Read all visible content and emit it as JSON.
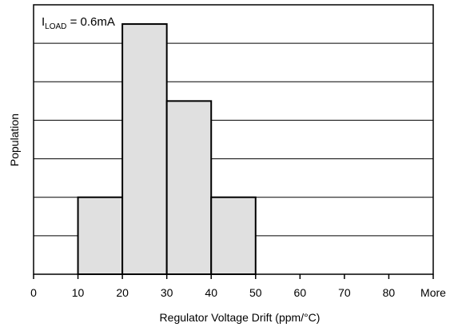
{
  "chart_data": {
    "type": "bar",
    "subtype": "histogram",
    "annotation": {
      "prefix": "I",
      "subscript": "LOAD",
      "suffix": " = 0.6mA"
    },
    "xlabel": "Regulator Voltage Drift (ppm/°C)",
    "ylabel": "Population",
    "x_tick_labels": [
      "0",
      "10",
      "20",
      "30",
      "40",
      "50",
      "60",
      "70",
      "80",
      "More"
    ],
    "bins": [
      {
        "from": 0,
        "to": 10,
        "value": 0
      },
      {
        "from": 10,
        "to": 20,
        "value": 2
      },
      {
        "from": 20,
        "to": 30,
        "value": 6.5
      },
      {
        "from": 30,
        "to": 40,
        "value": 4.5
      },
      {
        "from": 40,
        "to": 50,
        "value": 2
      },
      {
        "from": 50,
        "to": 60,
        "value": 0
      },
      {
        "from": 60,
        "to": 70,
        "value": 0
      },
      {
        "from": 70,
        "to": 80,
        "value": 0
      },
      {
        "from": 80,
        "to": "More",
        "value": 0
      }
    ],
    "ylim": [
      0,
      7
    ],
    "y_grid_step": 1,
    "grid": true,
    "y_tick_labels_shown": false,
    "colors": {
      "bar_fill": "#e0e0e0",
      "bar_stroke": "#000000",
      "grid": "#000000"
    }
  }
}
